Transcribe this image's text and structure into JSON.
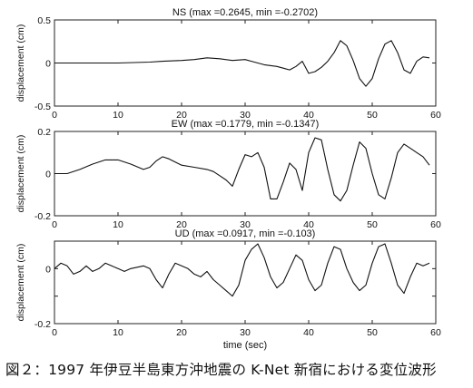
{
  "caption": "図２：1997 年伊豆半島東方沖地震の K-Net 新宿における変位波形",
  "chart_data": [
    {
      "type": "line",
      "title": "NS (max =0.2645, min =-0.2702)",
      "xlabel": "",
      "ylabel": "displacement (cm)",
      "xlim": [
        0,
        60
      ],
      "ylim": [
        -0.5,
        0.5
      ],
      "xticks": [
        0,
        10,
        20,
        30,
        40,
        50,
        60
      ],
      "yticks": [
        -0.5,
        0,
        0.5
      ],
      "ytick_labels": [
        "-0.5",
        "0",
        "0.5"
      ],
      "series": [
        {
          "x": [
            0,
            10,
            15,
            17,
            20,
            22,
            24,
            26,
            28,
            30,
            31,
            32,
            33,
            35,
            36,
            37,
            38,
            39,
            40,
            41,
            42,
            43,
            44,
            45,
            46,
            47,
            48,
            49,
            50,
            51,
            52,
            53,
            54,
            55,
            56,
            57,
            58,
            59
          ],
          "values": [
            0,
            0,
            0.01,
            0.02,
            0.03,
            0.04,
            0.06,
            0.05,
            0.03,
            0.04,
            0.02,
            0.0,
            -0.02,
            -0.04,
            -0.06,
            -0.08,
            -0.04,
            0.02,
            -0.12,
            -0.1,
            -0.05,
            0.02,
            0.12,
            0.26,
            0.2,
            0.03,
            -0.18,
            -0.27,
            -0.18,
            0.05,
            0.22,
            0.26,
            0.12,
            -0.08,
            -0.12,
            0.02,
            0.07,
            0.06
          ]
        }
      ]
    },
    {
      "type": "line",
      "title": "EW (max =0.1779, min =-0.1347)",
      "xlabel": "",
      "ylabel": "displacement (cm)",
      "xlim": [
        0,
        60
      ],
      "ylim": [
        -0.2,
        0.2
      ],
      "xticks": [
        0,
        10,
        20,
        30,
        40,
        50,
        60
      ],
      "yticks": [
        -0.2,
        0,
        0.2
      ],
      "ytick_labels": [
        "-0.2",
        "0",
        "0.2"
      ],
      "series": [
        {
          "x": [
            0,
            2,
            4,
            6,
            8,
            10,
            12,
            14,
            15,
            16,
            17,
            18,
            20,
            22,
            24,
            25,
            26,
            27,
            28,
            29,
            30,
            31,
            32,
            33,
            34,
            35,
            36,
            37,
            38,
            39,
            40,
            41,
            42,
            43,
            44,
            45,
            46,
            47,
            48,
            49,
            50,
            51,
            52,
            53,
            54,
            55,
            56,
            57,
            58,
            59
          ],
          "values": [
            0,
            0,
            0.02,
            0.045,
            0.065,
            0.065,
            0.045,
            0.02,
            0.03,
            0.06,
            0.08,
            0.07,
            0.04,
            0.03,
            0.02,
            0.01,
            -0.01,
            -0.03,
            -0.06,
            0.02,
            0.09,
            0.08,
            0.1,
            0.03,
            -0.12,
            -0.12,
            -0.04,
            0.05,
            0.02,
            -0.08,
            0.1,
            0.17,
            0.16,
            0.02,
            -0.1,
            -0.13,
            -0.08,
            0.04,
            0.15,
            0.12,
            0.0,
            -0.1,
            -0.12,
            -0.02,
            0.1,
            0.14,
            0.12,
            0.1,
            0.08,
            0.04
          ]
        }
      ]
    },
    {
      "type": "line",
      "title": "UD (max =0.0917, min =-0.103)",
      "xlabel": "time (sec)",
      "ylabel": "displacement (cm)",
      "xlim": [
        0,
        60
      ],
      "ylim": [
        -0.2,
        0.1
      ],
      "xticks": [
        0,
        10,
        20,
        30,
        40,
        50,
        60
      ],
      "yticks": [
        -0.2,
        -0.1,
        0,
        0.1
      ],
      "ytick_labels": [
        "-0.2",
        "",
        "0",
        ""
      ],
      "series": [
        {
          "x": [
            0,
            1,
            2,
            3,
            4,
            5,
            6,
            7,
            8,
            9,
            10,
            11,
            12,
            13,
            14,
            15,
            16,
            17,
            18,
            19,
            20,
            21,
            22,
            23,
            24,
            25,
            26,
            27,
            28,
            29,
            30,
            31,
            32,
            33,
            34,
            35,
            36,
            37,
            38,
            39,
            40,
            41,
            42,
            43,
            44,
            45,
            46,
            47,
            48,
            49,
            50,
            51,
            52,
            53,
            54,
            55,
            56,
            57,
            58,
            59
          ],
          "values": [
            0.0,
            0.02,
            0.01,
            -0.02,
            -0.01,
            0.01,
            -0.01,
            0.0,
            0.02,
            0.01,
            0.0,
            -0.01,
            0.0,
            0.005,
            0.01,
            0.0,
            -0.04,
            -0.07,
            -0.02,
            0.02,
            0.01,
            0.0,
            -0.02,
            -0.03,
            -0.01,
            -0.04,
            -0.06,
            -0.08,
            -0.1,
            -0.06,
            0.03,
            0.07,
            0.09,
            0.04,
            -0.03,
            -0.07,
            -0.05,
            0.0,
            0.05,
            0.03,
            -0.04,
            -0.08,
            -0.06,
            0.02,
            0.08,
            0.07,
            0.0,
            -0.05,
            -0.08,
            -0.06,
            0.02,
            0.08,
            0.09,
            0.02,
            -0.06,
            -0.09,
            -0.03,
            0.02,
            0.01,
            0.02
          ]
        }
      ]
    }
  ]
}
